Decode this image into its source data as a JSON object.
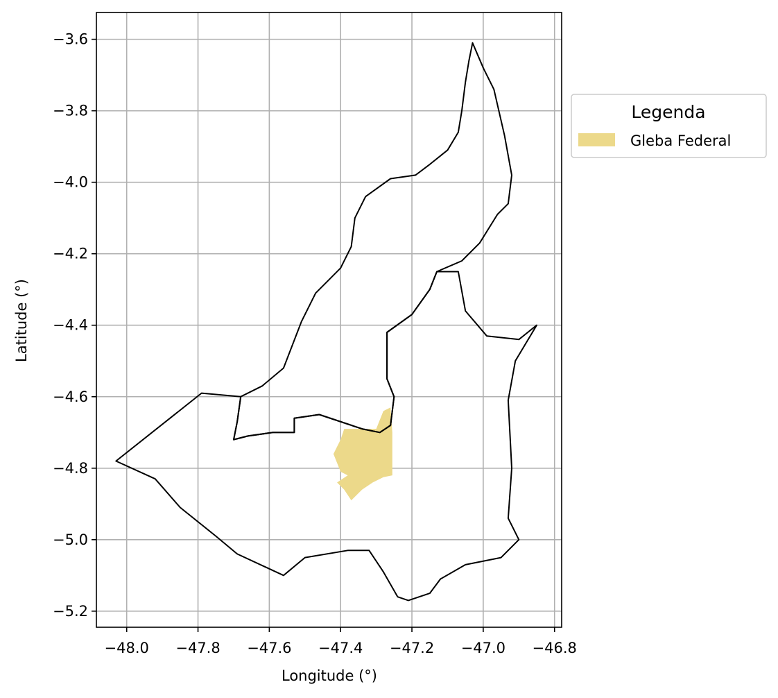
{
  "chart_data": {
    "type": "map",
    "xlabel": "Longitude (°)",
    "ylabel": "Latitude (°)",
    "xlim": [
      -48.085,
      -46.78
    ],
    "ylim": [
      -5.245,
      -3.525
    ],
    "xticks": [
      -48.0,
      -47.8,
      -47.6,
      -47.4,
      -47.2,
      -47.0,
      -46.8
    ],
    "xtick_labels": [
      "−48.0",
      "−47.8",
      "−47.6",
      "−47.4",
      "−47.2",
      "−47.0",
      "−46.8"
    ],
    "yticks": [
      -3.6,
      -3.8,
      -4.0,
      -4.2,
      -4.4,
      -4.6,
      -4.8,
      -5.0,
      -5.2
    ],
    "ytick_labels": [
      "−3.6",
      "−3.8",
      "−4.0",
      "−4.2",
      "−4.4",
      "−4.6",
      "−4.8",
      "−5.0",
      "−5.2"
    ],
    "grid": true,
    "legend": {
      "title": "Legenda",
      "placement": "outside-right-top",
      "entries": [
        {
          "label": "Gleba Federal",
          "color": "#ecd98a"
        }
      ]
    },
    "boundaries": {
      "north_municipality": [
        [
          -47.03,
          -3.61
        ],
        [
          -47.04,
          -3.66
        ],
        [
          -47.05,
          -3.72
        ],
        [
          -47.06,
          -3.8
        ],
        [
          -47.07,
          -3.86
        ],
        [
          -47.1,
          -3.91
        ],
        [
          -47.15,
          -3.95
        ],
        [
          -47.19,
          -3.98
        ],
        [
          -47.26,
          -3.99
        ],
        [
          -47.33,
          -4.04
        ],
        [
          -47.36,
          -4.1
        ],
        [
          -47.37,
          -4.18
        ],
        [
          -47.4,
          -4.24
        ],
        [
          -47.43,
          -4.27
        ],
        [
          -47.47,
          -4.31
        ],
        [
          -47.51,
          -4.39
        ],
        [
          -47.56,
          -4.52
        ],
        [
          -47.62,
          -4.57
        ],
        [
          -47.68,
          -4.6
        ],
        [
          -47.69,
          -4.67
        ],
        [
          -47.7,
          -4.72
        ],
        [
          -47.66,
          -4.71
        ],
        [
          -47.59,
          -4.7
        ],
        [
          -47.53,
          -4.7
        ],
        [
          -47.53,
          -4.66
        ],
        [
          -47.46,
          -4.65
        ],
        [
          -47.34,
          -4.69
        ],
        [
          -47.29,
          -4.7
        ],
        [
          -47.26,
          -4.68
        ],
        [
          -47.25,
          -4.6
        ],
        [
          -47.27,
          -4.55
        ],
        [
          -47.27,
          -4.42
        ],
        [
          -47.2,
          -4.37
        ],
        [
          -47.15,
          -4.3
        ],
        [
          -47.13,
          -4.25
        ],
        [
          -47.06,
          -4.22
        ],
        [
          -47.01,
          -4.17
        ],
        [
          -46.96,
          -4.09
        ],
        [
          -46.93,
          -4.06
        ],
        [
          -46.92,
          -3.98
        ],
        [
          -46.94,
          -3.87
        ],
        [
          -46.97,
          -3.74
        ],
        [
          -47.0,
          -3.68
        ],
        [
          -47.03,
          -3.61
        ]
      ],
      "south_municipality": [
        [
          -48.03,
          -4.78
        ],
        [
          -47.92,
          -4.83
        ],
        [
          -47.85,
          -4.91
        ],
        [
          -47.75,
          -4.99
        ],
        [
          -47.69,
          -5.04
        ],
        [
          -47.56,
          -5.1
        ],
        [
          -47.5,
          -5.05
        ],
        [
          -47.38,
          -5.03
        ],
        [
          -47.32,
          -5.03
        ],
        [
          -47.28,
          -5.09
        ],
        [
          -47.24,
          -5.16
        ],
        [
          -47.21,
          -5.17
        ],
        [
          -47.15,
          -5.15
        ],
        [
          -47.12,
          -5.11
        ],
        [
          -47.05,
          -5.07
        ],
        [
          -46.95,
          -5.05
        ],
        [
          -46.9,
          -5.0
        ],
        [
          -46.93,
          -4.94
        ],
        [
          -46.92,
          -4.8
        ],
        [
          -46.93,
          -4.61
        ],
        [
          -46.91,
          -4.5
        ],
        [
          -46.85,
          -4.4
        ],
        [
          -46.9,
          -4.44
        ],
        [
          -46.99,
          -4.43
        ],
        [
          -47.05,
          -4.36
        ],
        [
          -47.07,
          -4.25
        ],
        [
          -47.13,
          -4.25
        ],
        [
          -47.15,
          -4.3
        ],
        [
          -47.2,
          -4.37
        ],
        [
          -47.27,
          -4.42
        ],
        [
          -47.27,
          -4.55
        ],
        [
          -47.25,
          -4.6
        ],
        [
          -47.26,
          -4.68
        ],
        [
          -47.29,
          -4.7
        ],
        [
          -47.34,
          -4.69
        ],
        [
          -47.46,
          -4.65
        ],
        [
          -47.53,
          -4.66
        ],
        [
          -47.53,
          -4.7
        ],
        [
          -47.59,
          -4.7
        ],
        [
          -47.66,
          -4.71
        ],
        [
          -47.7,
          -4.72
        ],
        [
          -47.69,
          -4.67
        ],
        [
          -47.68,
          -4.6
        ],
        [
          -47.79,
          -4.59
        ],
        [
          -48.03,
          -4.78
        ]
      ]
    },
    "gleba_federal": [
      [
        -47.28,
        -4.64
      ],
      [
        -47.26,
        -4.63
      ],
      [
        -47.255,
        -4.7
      ],
      [
        -47.255,
        -4.82
      ],
      [
        -47.28,
        -4.825
      ],
      [
        -47.31,
        -4.84
      ],
      [
        -47.34,
        -4.86
      ],
      [
        -47.37,
        -4.89
      ],
      [
        -47.39,
        -4.86
      ],
      [
        -47.41,
        -4.84
      ],
      [
        -47.38,
        -4.82
      ],
      [
        -47.4,
        -4.81
      ],
      [
        -47.42,
        -4.76
      ],
      [
        -47.4,
        -4.72
      ],
      [
        -47.39,
        -4.69
      ],
      [
        -47.33,
        -4.69
      ],
      [
        -47.3,
        -4.69
      ],
      [
        -47.28,
        -4.64
      ]
    ]
  }
}
